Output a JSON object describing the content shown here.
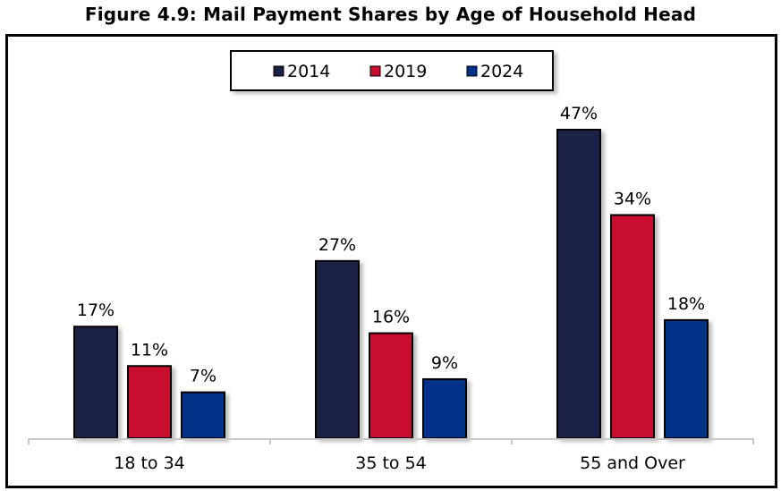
{
  "chart_data": {
    "type": "bar",
    "title": "Figure 4.9: Mail Payment Shares by Age of Household Head",
    "xlabel": "",
    "ylabel": "",
    "categories": [
      "18 to 34",
      "35 to 54",
      "55 and Over"
    ],
    "series": [
      {
        "name": "2014",
        "color": "#1d2045",
        "values": [
          17,
          27,
          47
        ]
      },
      {
        "name": "2019",
        "color": "#c8102e",
        "values": [
          11,
          16,
          34
        ]
      },
      {
        "name": "2024",
        "color": "#003087",
        "values": [
          7,
          9,
          18
        ]
      }
    ],
    "value_suffix": "%",
    "ylim": [
      0,
      50
    ],
    "grid": false,
    "legend": "top-center",
    "data_labels": true
  }
}
